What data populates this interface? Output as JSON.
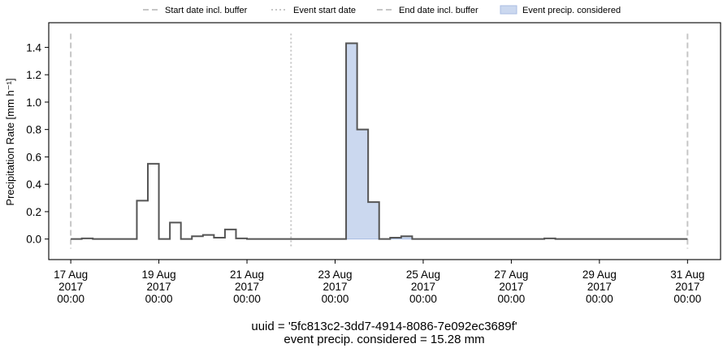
{
  "chart_data": {
    "type": "line",
    "drawstyle": "steps-post",
    "ylabel": "Precipitation Rate [mm h⁻¹]",
    "ylim": [
      -0.15,
      1.58
    ],
    "xlim": [
      "2017-08-16 12:00",
      "2017-08-31 18:00"
    ],
    "yticks": [
      0.0,
      0.2,
      0.4,
      0.6,
      0.8,
      1.0,
      1.2,
      1.4
    ],
    "ytick_labels": [
      "0.0",
      "0.2",
      "0.4",
      "0.6",
      "0.8",
      "1.0",
      "1.2",
      "1.4"
    ],
    "xticks": [
      {
        "x": "2017-08-17 00:00",
        "label": [
          "17 Aug",
          "2017",
          "00:00"
        ]
      },
      {
        "x": "2017-08-19 00:00",
        "label": [
          "19 Aug",
          "2017",
          "00:00"
        ]
      },
      {
        "x": "2017-08-21 00:00",
        "label": [
          "21 Aug",
          "2017",
          "00:00"
        ]
      },
      {
        "x": "2017-08-23 00:00",
        "label": [
          "23 Aug",
          "2017",
          "00:00"
        ]
      },
      {
        "x": "2017-08-25 00:00",
        "label": [
          "25 Aug",
          "2017",
          "00:00"
        ]
      },
      {
        "x": "2017-08-27 00:00",
        "label": [
          "27 Aug",
          "2017",
          "00:00"
        ]
      },
      {
        "x": "2017-08-29 00:00",
        "label": [
          "29 Aug",
          "2017",
          "00:00"
        ]
      },
      {
        "x": "2017-08-31 00:00",
        "label": [
          "31 Aug",
          "2017",
          "00:00"
        ]
      }
    ],
    "grid": false,
    "legend_placement": "top-center, above plot",
    "legend": [
      {
        "label": "Start date incl. buffer",
        "style": "dashed",
        "color": "#c6c6c6"
      },
      {
        "label": "Event start date",
        "style": "dotted",
        "color": "#c6c6c6"
      },
      {
        "label": "End date incl. buffer",
        "style": "dashed",
        "color": "#c6c6c6"
      },
      {
        "label": "Event precip. considered",
        "style": "fill",
        "color": "#cbd8ef"
      }
    ],
    "vlines": [
      {
        "x": "2017-08-17 00:00",
        "style": "dashed"
      },
      {
        "x": "2017-08-22 00:00",
        "style": "dotted"
      },
      {
        "x": "2017-08-31 00:00",
        "style": "dashed"
      }
    ],
    "series": [
      {
        "x": [
          "2017-08-17 00:00",
          "2017-08-17 06:00",
          "2017-08-17 12:00",
          "2017-08-17 18:00",
          "2017-08-18 00:00",
          "2017-08-18 06:00",
          "2017-08-18 12:00",
          "2017-08-18 18:00",
          "2017-08-19 00:00",
          "2017-08-19 06:00",
          "2017-08-19 12:00",
          "2017-08-19 18:00",
          "2017-08-20 00:00",
          "2017-08-20 06:00",
          "2017-08-20 12:00",
          "2017-08-20 18:00",
          "2017-08-21 00:00",
          "2017-08-21 06:00",
          "2017-08-21 12:00",
          "2017-08-21 18:00",
          "2017-08-22 00:00",
          "2017-08-22 06:00",
          "2017-08-22 12:00",
          "2017-08-22 18:00",
          "2017-08-23 00:00",
          "2017-08-23 06:00",
          "2017-08-23 12:00",
          "2017-08-23 18:00",
          "2017-08-24 00:00",
          "2017-08-24 06:00",
          "2017-08-24 12:00",
          "2017-08-24 18:00",
          "2017-08-25 00:00",
          "2017-08-25 06:00",
          "2017-08-25 12:00",
          "2017-08-25 18:00",
          "2017-08-26 00:00",
          "2017-08-26 06:00",
          "2017-08-26 12:00",
          "2017-08-26 18:00",
          "2017-08-27 00:00",
          "2017-08-27 06:00",
          "2017-08-27 12:00",
          "2017-08-27 18:00",
          "2017-08-28 00:00",
          "2017-08-28 06:00",
          "2017-08-28 12:00",
          "2017-08-28 18:00",
          "2017-08-29 00:00",
          "2017-08-29 06:00",
          "2017-08-29 12:00",
          "2017-08-29 18:00",
          "2017-08-30 00:00",
          "2017-08-30 06:00",
          "2017-08-30 12:00",
          "2017-08-30 18:00",
          "2017-08-31 00:00"
        ],
        "values": [
          0.0,
          0.005,
          0.0,
          0.0,
          0.0,
          0.0,
          0.28,
          0.55,
          0.0,
          0.12,
          0.0,
          0.02,
          0.03,
          0.01,
          0.07,
          0.005,
          0.0,
          0.0,
          0.0,
          0.0,
          0.0,
          0.0,
          0.0,
          0.0,
          0.0,
          1.43,
          0.8,
          0.27,
          0.0,
          0.01,
          0.02,
          0.0,
          0.0,
          0.0,
          0.0,
          0.0,
          0.0,
          0.0,
          0.0,
          0.0,
          0.0,
          0.0,
          0.0,
          0.005,
          0.0,
          0.0,
          0.0,
          0.0,
          0.0,
          0.0,
          0.0,
          0.0,
          0.0,
          0.0,
          0.0,
          0.0,
          0.0
        ],
        "color": "#555555"
      }
    ],
    "fill_region": {
      "from": "2017-08-22 06:00",
      "to": "2017-08-24 18:00",
      "color": "#cbd8ef"
    }
  },
  "caption": {
    "line1": "uuid = '5fc813c2-3dd7-4914-8086-7e092ec3689f'",
    "line2": "event precip. considered = 15.28 mm"
  }
}
